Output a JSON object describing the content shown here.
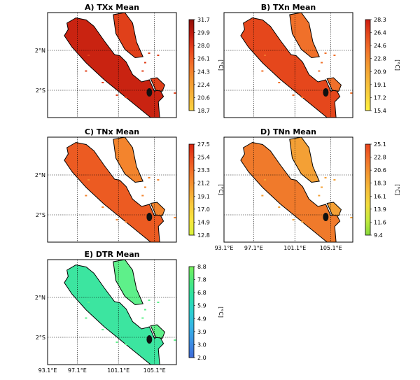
{
  "figure": {
    "panels": [
      {
        "id": "A",
        "title": "A) TXx Mean",
        "unit": "[°C]",
        "colorbar": [
          "31.7",
          "29.9",
          "28.0",
          "26.1",
          "24.3",
          "22.4",
          "20.6",
          "18.7"
        ],
        "cmap": [
          "#8f0f08",
          "#c41d10",
          "#e8451d",
          "#f1712a",
          "#f3962f",
          "#f6b33a",
          "#fad33f"
        ],
        "fill": "#c92311",
        "fill2": "#e0401a",
        "ylabels": true,
        "xlabels": false
      },
      {
        "id": "B",
        "title": "B) TXn Mean",
        "unit": "[°C]",
        "colorbar": [
          "28.3",
          "26.4",
          "24.6",
          "22.8",
          "20.9",
          "19.1",
          "17.2",
          "15.4"
        ],
        "cmap": [
          "#cf1d10",
          "#e44a1d",
          "#f2722a",
          "#f39a31",
          "#f6b83a",
          "#f9d33d",
          "#fff23d"
        ],
        "fill": "#e5471c",
        "fill2": "#f0702a",
        "ylabels": false,
        "xlabels": false
      },
      {
        "id": "C",
        "title": "C) TNx Mean",
        "unit": "[°C]",
        "colorbar": [
          "27.5",
          "25.4",
          "23.3",
          "21.2",
          "19.1",
          "17.0",
          "14.9",
          "12.8"
        ],
        "cmap": [
          "#d9240f",
          "#ea501f",
          "#f3792b",
          "#f5a033",
          "#f8c93c",
          "#f9e53d",
          "#d8f23c"
        ],
        "fill": "#ec5b22",
        "fill2": "#f3842d",
        "ylabels": true,
        "xlabels": false
      },
      {
        "id": "D",
        "title": "D) TNn Mean",
        "unit": "[°C]",
        "colorbar": [
          "25.1",
          "22.8",
          "20.6",
          "18.3",
          "16.1",
          "13.9",
          "11.6",
          "9.4"
        ],
        "cmap": [
          "#e9431b",
          "#f2712a",
          "#f39a31",
          "#f6be3a",
          "#f1dc3c",
          "#c4ea3d",
          "#86d93a"
        ],
        "fill": "#f07a2b",
        "fill2": "#f4a035",
        "ylabels": false,
        "xlabels": true
      },
      {
        "id": "E",
        "title": "E) DTR Mean",
        "unit": "[°C]",
        "colorbar": [
          "8.8",
          "7.8",
          "6.8",
          "5.9",
          "4.9",
          "3.9",
          "3.0",
          "2.0"
        ],
        "cmap": [
          "#76f05a",
          "#49e77f",
          "#2be0a7",
          "#2ccfd0",
          "#36b2e5",
          "#3c8fe3",
          "#3f6ad8"
        ],
        "fill": "#3ce5a0",
        "fill2": "#5ef08a",
        "ylabels": true,
        "xlabels": true
      }
    ],
    "lat_labels": [
      "2°N",
      "2°S"
    ],
    "lon_labels": [
      "93.1°E",
      "97.1°E",
      "101.1°E",
      "105.1°E"
    ]
  }
}
